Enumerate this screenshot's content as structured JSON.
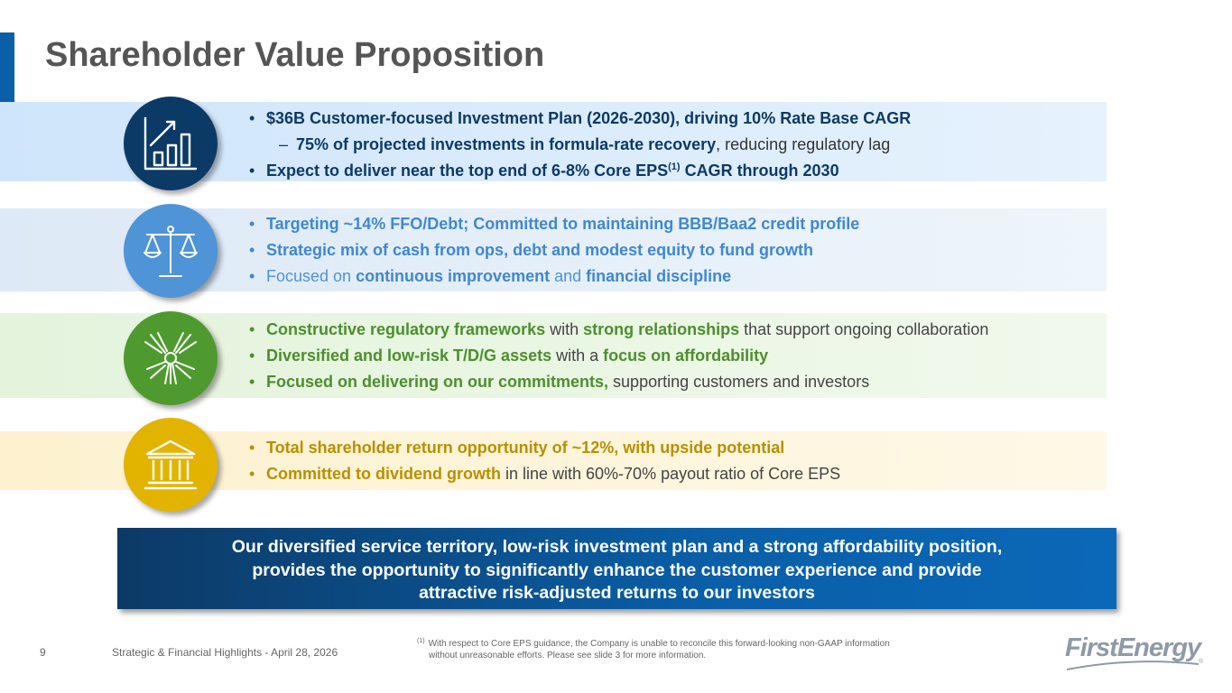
{
  "slide": {
    "title": "Shareholder Value Proposition",
    "page_number": "9",
    "footer_title": "Strategic & Financial Highlights - April 28, 2026"
  },
  "sections": [
    {
      "icon": "growth-chart-icon",
      "color": "#0c3a66",
      "bullets": [
        {
          "level": 1,
          "parts": [
            {
              "text": "$36B Customer-focused Investment Plan (2026-2030), driving 10% Rate Base CAGR",
              "bold": true
            }
          ]
        },
        {
          "level": 2,
          "parts": [
            {
              "text": "75% of projected investments in formula-rate recovery",
              "bold": true
            },
            {
              "text": ", reducing regulatory lag",
              "bold": false
            }
          ]
        },
        {
          "level": 1,
          "parts": [
            {
              "text": "Expect to deliver near the top end of 6-8% Core EPS",
              "bold": true
            },
            {
              "text": "(1)",
              "bold": true,
              "sup": true
            },
            {
              "text": " CAGR through 2030",
              "bold": true
            }
          ]
        }
      ]
    },
    {
      "icon": "scales-icon",
      "color": "#3f88cf",
      "bullets": [
        {
          "level": 1,
          "parts": [
            {
              "text": "Targeting ~14% FFO/Debt; Committed to maintaining BBB/Baa2 credit profile",
              "bold": true
            }
          ]
        },
        {
          "level": 1,
          "parts": [
            {
              "text": "Strategic mix of cash from ops, debt and modest equity to fund growth",
              "bold": true
            }
          ]
        },
        {
          "level": 1,
          "parts": [
            {
              "text": "Focused on ",
              "bold": false
            },
            {
              "text": "continuous improvement",
              "bold": true
            },
            {
              "text": " and ",
              "bold": false
            },
            {
              "text": "financial discipline",
              "bold": true
            }
          ]
        }
      ]
    },
    {
      "icon": "hands-together-icon",
      "color": "#4c8f2c",
      "bullets": [
        {
          "level": 1,
          "parts": [
            {
              "text": "Constructive regulatory frameworks",
              "bold": true
            },
            {
              "text": " with ",
              "bold": false
            },
            {
              "text": "strong relationships",
              "bold": true
            },
            {
              "text": " that support ongoing collaboration",
              "bold": false
            }
          ]
        },
        {
          "level": 1,
          "parts": [
            {
              "text": "Diversified and low-risk T/D/G assets",
              "bold": true
            },
            {
              "text": " with a ",
              "bold": false
            },
            {
              "text": "focus on affordability",
              "bold": true
            }
          ]
        },
        {
          "level": 1,
          "parts": [
            {
              "text": "Focused on delivering on our commitments,",
              "bold": true
            },
            {
              "text": " supporting customers and investors",
              "bold": false
            }
          ]
        }
      ]
    },
    {
      "icon": "bank-building-icon",
      "color": "#b98f00",
      "bullets": [
        {
          "level": 1,
          "parts": [
            {
              "text": "Total shareholder return opportunity of ~12%, with upside potential",
              "bold": true
            }
          ]
        },
        {
          "level": 1,
          "parts": [
            {
              "text": "Committed to dividend growth",
              "bold": true
            },
            {
              "text": " in line with 60%-70% payout ratio of Core EPS",
              "bold": false
            }
          ]
        }
      ]
    }
  ],
  "callout": {
    "lines": [
      "Our diversified service territory, low-risk investment plan and a strong affordability position,",
      "provides the opportunity to significantly enhance the customer experience and provide",
      "attractive risk-adjusted returns to our investors"
    ]
  },
  "footnote": {
    "marker": "(1)",
    "line1": "With respect to Core EPS guidance, the Company is unable to reconcile this forward-looking non-GAAP information",
    "line2": "without unreasonable efforts. Please see slide 3 for more information."
  },
  "logo": {
    "text": "FirstEnergy",
    "registered_mark": "®"
  }
}
